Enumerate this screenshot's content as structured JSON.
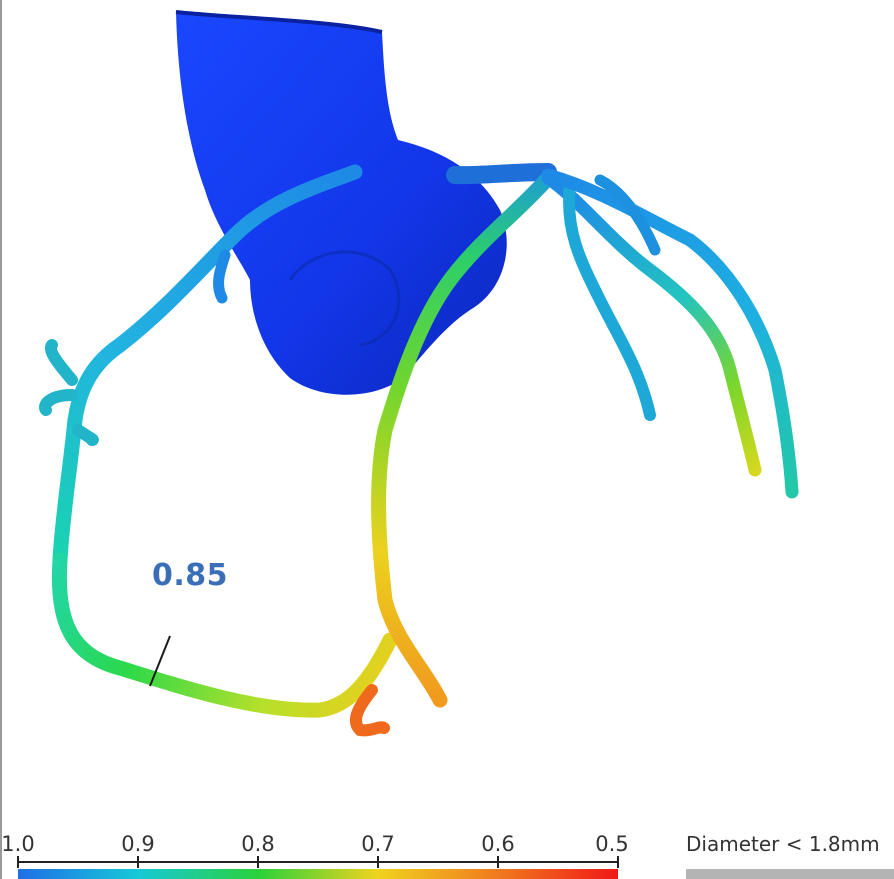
{
  "annotation": {
    "ffr_value": "0.85"
  },
  "colorbar": {
    "tick_labels": [
      "1.0",
      "0.9",
      "0.8",
      "0.7",
      "0.6",
      "0.5"
    ],
    "colors": [
      "#1f6fe6",
      "#17c8d8",
      "#29d23a",
      "#f0d31e",
      "#f07a1e",
      "#f01818"
    ]
  },
  "diameter_legend": {
    "label": "Diameter < 1.8mm",
    "color": "#b4b4b4"
  },
  "colors": {
    "aorta": "#1236e8",
    "annotation_text": "#3a6fb8"
  }
}
